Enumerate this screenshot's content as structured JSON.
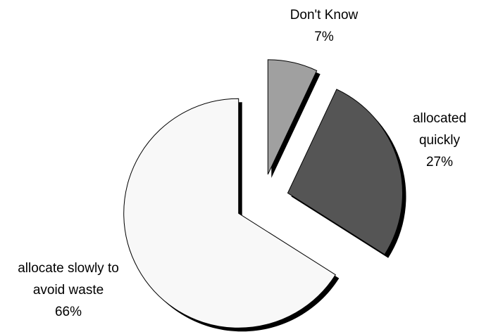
{
  "chart_data": {
    "type": "pie",
    "categories": [
      "Don't Know",
      "allocated quickly",
      "allocate slowly to avoid waste"
    ],
    "values": [
      7,
      27,
      66
    ],
    "value_labels": [
      "7%",
      "27%",
      "66%"
    ],
    "colors": [
      "#a0a0a0",
      "#555555",
      "#f8f8f8"
    ]
  }
}
